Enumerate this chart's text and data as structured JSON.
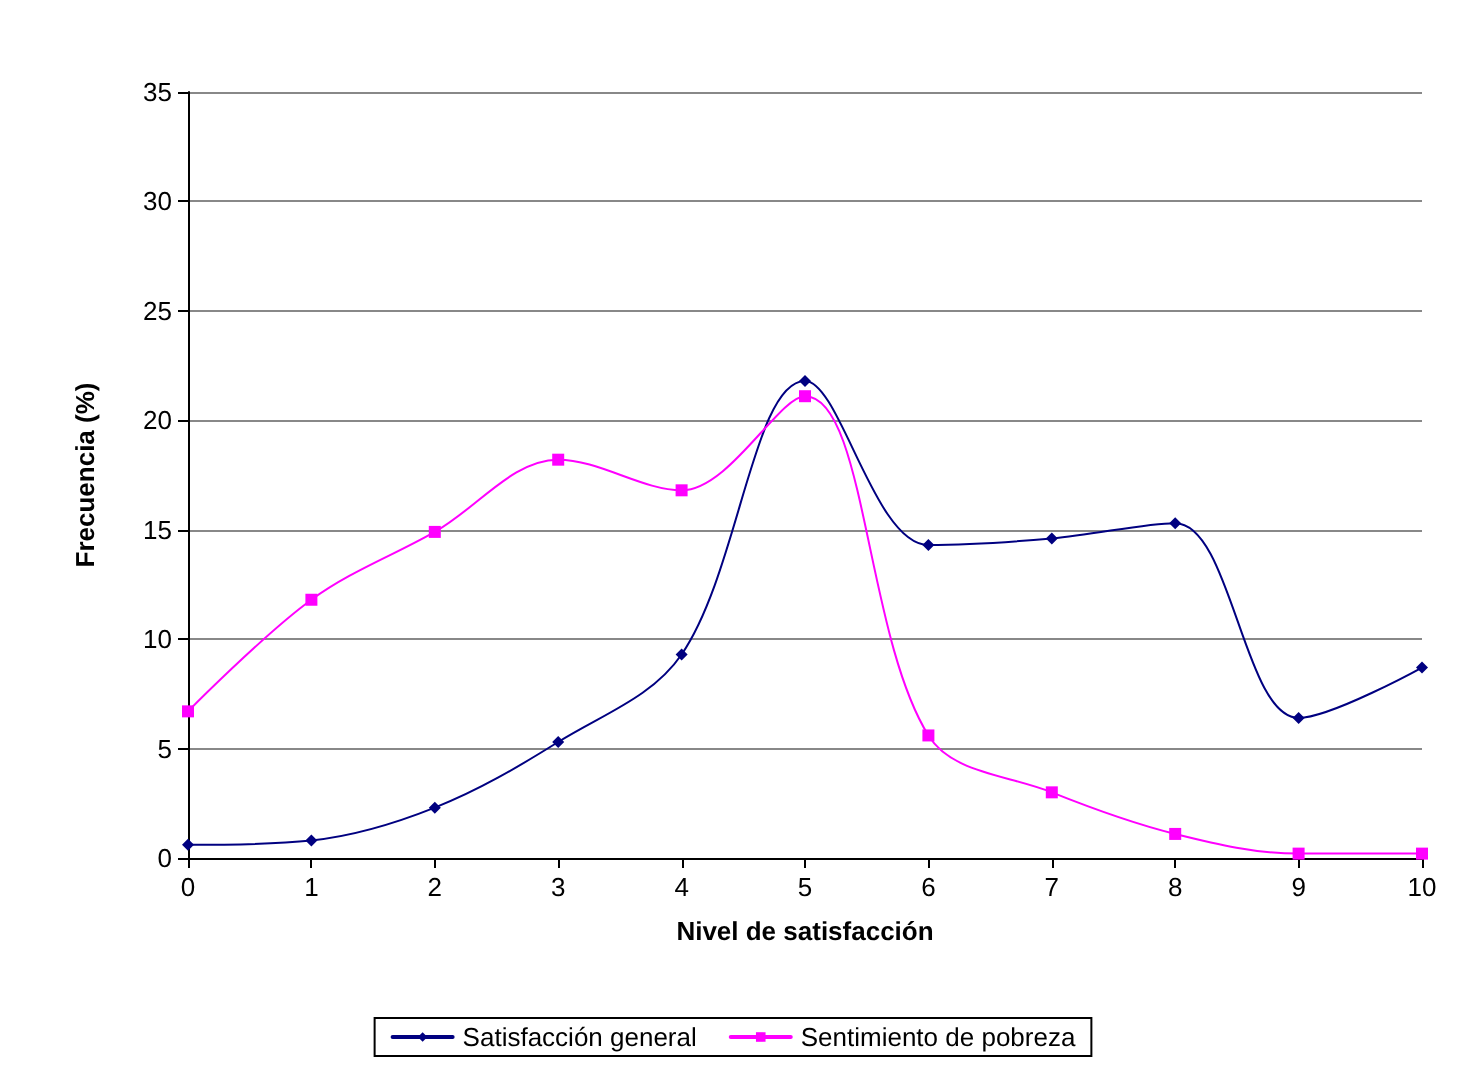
{
  "chart_data": {
    "type": "line",
    "xlabel": "Nivel de satisfacción",
    "ylabel": "Frecuencia (%)",
    "x": [
      0,
      1,
      2,
      3,
      4,
      5,
      6,
      7,
      8,
      9,
      10
    ],
    "series": [
      {
        "name": "Satisfacción general",
        "color": "#000080",
        "marker": "diamond",
        "values": [
          0.6,
          0.8,
          2.3,
          5.3,
          9.3,
          21.8,
          14.3,
          14.6,
          15.3,
          6.4,
          8.7
        ]
      },
      {
        "name": "Sentimiento de pobreza",
        "color": "#ff00ff",
        "marker": "square",
        "values": [
          6.7,
          11.8,
          14.9,
          18.2,
          16.8,
          21.1,
          5.6,
          3.0,
          1.1,
          0.2,
          0.2
        ]
      }
    ],
    "xlim": [
      0,
      10
    ],
    "xticks": [
      0,
      1,
      2,
      3,
      4,
      5,
      6,
      7,
      8,
      9,
      10
    ],
    "ylim": [
      0,
      35
    ],
    "yticks": [
      0,
      5,
      10,
      15,
      20,
      25,
      30,
      35
    ],
    "grid": "y",
    "legend": "bottom",
    "line_style": "solid"
  }
}
